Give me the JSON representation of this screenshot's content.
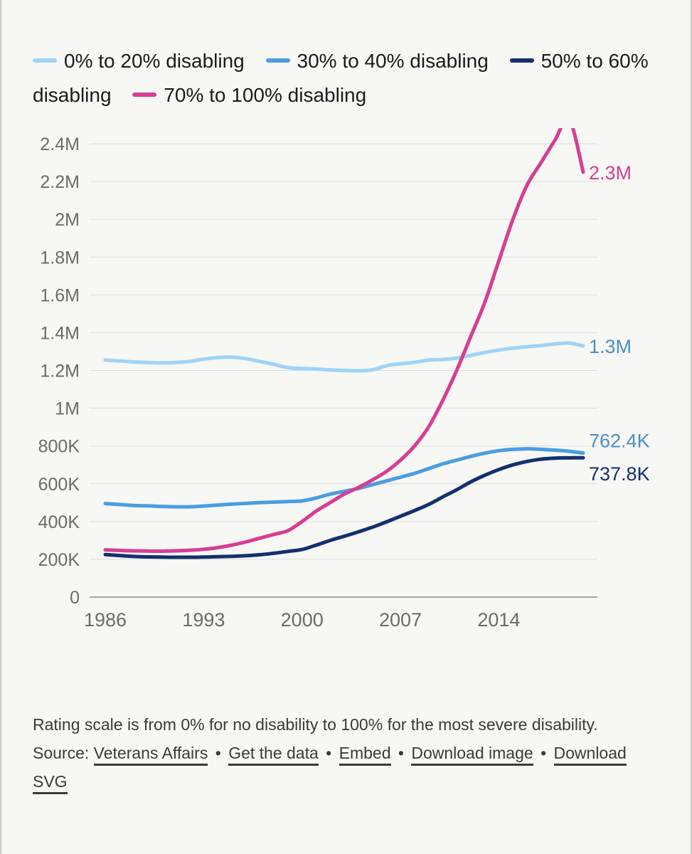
{
  "legend": [
    {
      "label": "0% to 20% disabling",
      "color": "#9fd3f7"
    },
    {
      "label": "30% to 40% disabling",
      "color": "#4a9de0"
    },
    {
      "label": "50% to 60% disabling",
      "color": "#13306e"
    },
    {
      "label": "70% to 100% disabling",
      "color": "#d63e93"
    }
  ],
  "chart_data": {
    "type": "line",
    "title": "",
    "xlabel": "",
    "ylabel": "",
    "x": [
      1986,
      1987,
      1988,
      1989,
      1990,
      1991,
      1992,
      1993,
      1994,
      1995,
      1996,
      1997,
      1998,
      1999,
      2000,
      2001,
      2002,
      2003,
      2004,
      2005,
      2006,
      2007,
      2008,
      2009,
      2010,
      2011,
      2012,
      2013,
      2014,
      2015,
      2016,
      2017,
      2018,
      2019,
      2020
    ],
    "x_ticks": [
      1986,
      1993,
      2000,
      2007,
      2014
    ],
    "y_ticks": [
      0,
      200000,
      400000,
      600000,
      800000,
      1000000,
      1200000,
      1400000,
      1600000,
      1800000,
      2000000,
      2200000,
      2400000
    ],
    "y_tick_labels": [
      "0",
      "200K",
      "400K",
      "600K",
      "800K",
      "1M",
      "1.2M",
      "1.4M",
      "1.6M",
      "1.8M",
      "2M",
      "2.2M",
      "2.4M"
    ],
    "xlim": [
      1986,
      2020
    ],
    "ylim": [
      0,
      2400000
    ],
    "grid": true,
    "series": [
      {
        "name": "0% to 20% disabling",
        "color": "#9fd3f7",
        "end_label": "1.3M",
        "end_label_color": "#4a8fc7",
        "values": [
          1255000,
          1250000,
          1245000,
          1242000,
          1240000,
          1242000,
          1248000,
          1260000,
          1268000,
          1270000,
          1262000,
          1248000,
          1232000,
          1215000,
          1210000,
          1207000,
          1203000,
          1200000,
          1198000,
          1203000,
          1225000,
          1235000,
          1243000,
          1255000,
          1258000,
          1265000,
          1280000,
          1295000,
          1308000,
          1318000,
          1325000,
          1332000,
          1340000,
          1345000,
          1330000
        ]
      },
      {
        "name": "30% to 40% disabling",
        "color": "#4a9de0",
        "end_label": "762.4K",
        "end_label_color": "#4a8fc7",
        "values": [
          495000,
          490000,
          485000,
          483000,
          480000,
          478000,
          478000,
          482000,
          487000,
          492000,
          496000,
          500000,
          503000,
          506000,
          509000,
          525000,
          545000,
          560000,
          575000,
          595000,
          615000,
          635000,
          655000,
          680000,
          705000,
          725000,
          745000,
          762000,
          775000,
          782000,
          785000,
          782000,
          778000,
          772000,
          762400
        ]
      },
      {
        "name": "50% to 60% disabling",
        "color": "#13306e",
        "end_label": "737.8K",
        "end_label_color": "#13306e",
        "values": [
          225000,
          220000,
          215000,
          213000,
          212000,
          211000,
          211000,
          212000,
          214000,
          216000,
          219000,
          224000,
          232000,
          242000,
          252000,
          275000,
          300000,
          322000,
          345000,
          370000,
          398000,
          428000,
          458000,
          490000,
          530000,
          568000,
          610000,
          645000,
          675000,
          700000,
          718000,
          730000,
          736000,
          737000,
          737800
        ]
      },
      {
        "name": "70% to 100% disabling",
        "color": "#d63e93",
        "end_label": "2.3M",
        "end_label_color": "#d63e93",
        "values": [
          250000,
          247000,
          245000,
          244000,
          243000,
          245000,
          248000,
          253000,
          262000,
          275000,
          292000,
          312000,
          332000,
          352000,
          400000,
          455000,
          500000,
          545000,
          580000,
          620000,
          665000,
          725000,
          800000,
          900000,
          1040000,
          1200000,
          1380000,
          1560000,
          1780000,
          2000000,
          2180000,
          2300000,
          2420000,
          2530000,
          2250000
        ]
      }
    ]
  },
  "footer": {
    "note": "Rating scale is from 0% for no disability to 100% for the most severe disability.",
    "source_label": "Source:",
    "source_link": "Veterans Affairs",
    "get_data": "Get the data",
    "embed": "Embed",
    "download_image": "Download image",
    "download_svg": "Download SVG",
    "separator": "•"
  }
}
